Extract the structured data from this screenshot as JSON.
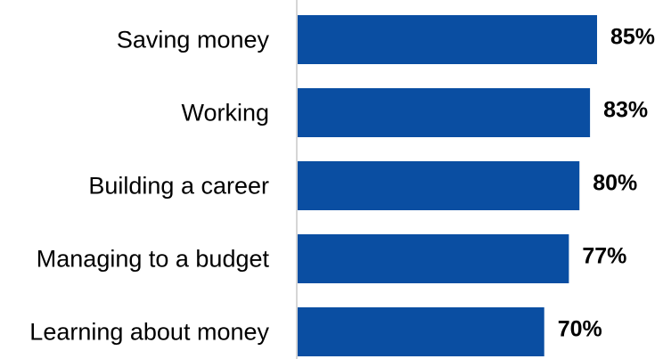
{
  "chart_data": {
    "type": "bar",
    "orientation": "horizontal",
    "categories": [
      "Saving money",
      "Working",
      "Building a career",
      "Managing to a budget",
      "Learning about money"
    ],
    "values": [
      85,
      83,
      80,
      77,
      70
    ],
    "data_labels": [
      "85%",
      "83%",
      "80%",
      "77%",
      "70%"
    ],
    "bar_color": "#0a4ea2",
    "axis_color": "#c8c8c8",
    "title": "",
    "xlabel": "",
    "ylabel": "",
    "grid": false,
    "legend": "none"
  }
}
